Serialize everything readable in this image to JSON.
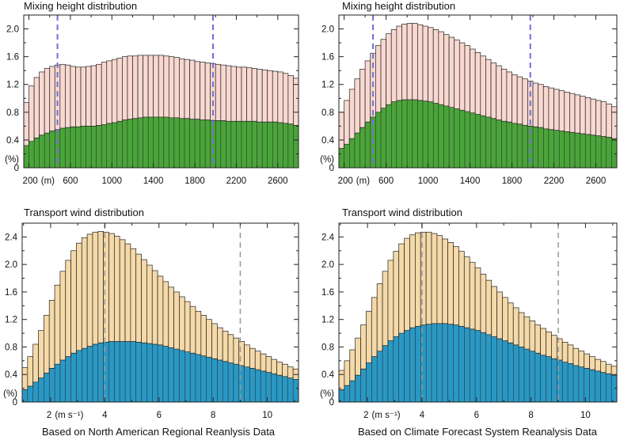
{
  "chart_data": [
    {
      "type": "bar",
      "title": "Mixing height distribution",
      "ylabel": "(%)",
      "xunit": "(m)",
      "xlim": [
        150,
        2800
      ],
      "ylim": [
        0,
        2.2
      ],
      "yticks": [
        0,
        0.4,
        0.8,
        1.2,
        1.6,
        2.0
      ],
      "xticks": [
        200,
        600,
        1000,
        1400,
        1800,
        2200,
        2600
      ],
      "bin_width": 50,
      "x": [
        175,
        225,
        275,
        325,
        375,
        425,
        475,
        525,
        575,
        625,
        675,
        725,
        775,
        825,
        875,
        925,
        975,
        1025,
        1075,
        1125,
        1175,
        1225,
        1275,
        1325,
        1375,
        1425,
        1475,
        1525,
        1575,
        1625,
        1675,
        1725,
        1775,
        1825,
        1875,
        1925,
        1975,
        2025,
        2075,
        2125,
        2175,
        2225,
        2275,
        2325,
        2375,
        2425,
        2475,
        2525,
        2575,
        2625,
        2675,
        2725,
        2775
      ],
      "colors": {
        "total": "#f8d8d0",
        "subset": "#4aa43a",
        "marker": "#6f6fd9"
      },
      "series": [
        {
          "values": [
            0.94,
            1.18,
            1.3,
            1.38,
            1.43,
            1.46,
            1.48,
            1.49,
            1.48,
            1.46,
            1.45,
            1.45,
            1.46,
            1.47,
            1.49,
            1.52,
            1.54,
            1.56,
            1.58,
            1.6,
            1.61,
            1.61,
            1.62,
            1.62,
            1.62,
            1.62,
            1.62,
            1.61,
            1.6,
            1.59,
            1.57,
            1.56,
            1.55,
            1.53,
            1.52,
            1.51,
            1.5,
            1.49,
            1.48,
            1.47,
            1.46,
            1.45,
            1.45,
            1.44,
            1.43,
            1.42,
            1.41,
            1.4,
            1.39,
            1.38,
            1.36,
            1.33,
            1.29
          ]
        },
        {
          "values": [
            0.32,
            0.38,
            0.43,
            0.47,
            0.5,
            0.53,
            0.55,
            0.57,
            0.58,
            0.59,
            0.59,
            0.6,
            0.6,
            0.6,
            0.61,
            0.62,
            0.64,
            0.65,
            0.67,
            0.69,
            0.7,
            0.71,
            0.72,
            0.73,
            0.73,
            0.73,
            0.73,
            0.73,
            0.72,
            0.72,
            0.71,
            0.71,
            0.7,
            0.7,
            0.69,
            0.69,
            0.68,
            0.68,
            0.68,
            0.67,
            0.67,
            0.67,
            0.67,
            0.67,
            0.67,
            0.66,
            0.66,
            0.66,
            0.66,
            0.65,
            0.64,
            0.63,
            0.61
          ]
        }
      ],
      "markers": [
        475,
        1975
      ]
    },
    {
      "type": "bar",
      "title": "Mixing height distribution",
      "ylabel": "(%)",
      "xunit": "(m)",
      "xlim": [
        150,
        2800
      ],
      "ylim": [
        0,
        2.2
      ],
      "yticks": [
        0,
        0.4,
        0.8,
        1.2,
        1.6,
        2.0
      ],
      "xticks": [
        200,
        600,
        1000,
        1400,
        1800,
        2200,
        2600
      ],
      "bin_width": 50,
      "x": [
        175,
        225,
        275,
        325,
        375,
        425,
        475,
        525,
        575,
        625,
        675,
        725,
        775,
        825,
        875,
        925,
        975,
        1025,
        1075,
        1125,
        1175,
        1225,
        1275,
        1325,
        1375,
        1425,
        1475,
        1525,
        1575,
        1625,
        1675,
        1725,
        1775,
        1825,
        1875,
        1925,
        1975,
        2025,
        2075,
        2125,
        2175,
        2225,
        2275,
        2325,
        2375,
        2425,
        2475,
        2525,
        2575,
        2625,
        2675,
        2725,
        2775
      ],
      "colors": {
        "total": "#f8d8d0",
        "subset": "#4aa43a",
        "marker": "#6f6fd9"
      },
      "series": [
        {
          "values": [
            0.8,
            0.97,
            1.13,
            1.28,
            1.42,
            1.54,
            1.65,
            1.76,
            1.85,
            1.93,
            1.99,
            2.04,
            2.07,
            2.08,
            2.08,
            2.06,
            2.04,
            2.02,
            1.99,
            1.96,
            1.92,
            1.88,
            1.84,
            1.8,
            1.76,
            1.71,
            1.66,
            1.61,
            1.56,
            1.51,
            1.47,
            1.42,
            1.38,
            1.34,
            1.31,
            1.28,
            1.25,
            1.22,
            1.2,
            1.17,
            1.15,
            1.13,
            1.11,
            1.09,
            1.07,
            1.05,
            1.03,
            1.01,
            0.99,
            0.97,
            0.95,
            0.92,
            0.88
          ]
        },
        {
          "values": [
            0.28,
            0.34,
            0.42,
            0.5,
            0.58,
            0.66,
            0.73,
            0.8,
            0.86,
            0.91,
            0.95,
            0.97,
            0.98,
            0.98,
            0.98,
            0.97,
            0.96,
            0.95,
            0.93,
            0.91,
            0.89,
            0.87,
            0.85,
            0.83,
            0.81,
            0.79,
            0.77,
            0.75,
            0.73,
            0.71,
            0.69,
            0.67,
            0.66,
            0.64,
            0.63,
            0.61,
            0.6,
            0.59,
            0.58,
            0.56,
            0.55,
            0.54,
            0.53,
            0.52,
            0.51,
            0.5,
            0.49,
            0.48,
            0.47,
            0.46,
            0.45,
            0.44,
            0.42
          ]
        }
      ],
      "markers": [
        475,
        1975
      ]
    },
    {
      "type": "bar",
      "title": "Transport wind distribution",
      "ylabel": "(%)",
      "xunit": "(m s⁻¹)",
      "caption": "Based on North American Regional Reanlysis Data",
      "xlim": [
        0.95,
        11.15
      ],
      "ylim": [
        0,
        2.6
      ],
      "yticks": [
        0,
        0.4,
        0.8,
        1.2,
        1.6,
        2.0,
        2.4
      ],
      "xticks": [
        2,
        4,
        6,
        8,
        10
      ],
      "bin_width": 0.2,
      "x": [
        1.05,
        1.25,
        1.45,
        1.65,
        1.85,
        2.05,
        2.25,
        2.45,
        2.65,
        2.85,
        3.05,
        3.25,
        3.45,
        3.65,
        3.85,
        4.05,
        4.25,
        4.45,
        4.65,
        4.85,
        5.05,
        5.25,
        5.45,
        5.65,
        5.85,
        6.05,
        6.25,
        6.45,
        6.65,
        6.85,
        7.05,
        7.25,
        7.45,
        7.65,
        7.85,
        8.05,
        8.25,
        8.45,
        8.65,
        8.85,
        9.05,
        9.25,
        9.45,
        9.65,
        9.85,
        10.05,
        10.25,
        10.45,
        10.65,
        10.85,
        11.05
      ],
      "colors": {
        "total": "#f5d9a8",
        "subset": "#2a98c4",
        "marker": "#999999"
      },
      "series": [
        {
          "values": [
            0.5,
            0.66,
            0.84,
            1.04,
            1.26,
            1.48,
            1.7,
            1.9,
            2.06,
            2.2,
            2.31,
            2.39,
            2.44,
            2.47,
            2.48,
            2.47,
            2.45,
            2.41,
            2.36,
            2.3,
            2.23,
            2.15,
            2.07,
            1.99,
            1.91,
            1.83,
            1.75,
            1.67,
            1.6,
            1.53,
            1.46,
            1.39,
            1.32,
            1.26,
            1.2,
            1.14,
            1.08,
            1.03,
            0.98,
            0.93,
            0.88,
            0.83,
            0.78,
            0.74,
            0.7,
            0.66,
            0.62,
            0.58,
            0.55,
            0.51,
            0.48
          ]
        },
        {
          "values": [
            0.18,
            0.23,
            0.29,
            0.35,
            0.42,
            0.49,
            0.55,
            0.61,
            0.66,
            0.71,
            0.75,
            0.78,
            0.81,
            0.84,
            0.86,
            0.87,
            0.88,
            0.88,
            0.88,
            0.88,
            0.88,
            0.87,
            0.86,
            0.85,
            0.84,
            0.83,
            0.81,
            0.79,
            0.77,
            0.75,
            0.73,
            0.71,
            0.69,
            0.67,
            0.65,
            0.63,
            0.61,
            0.59,
            0.57,
            0.55,
            0.53,
            0.51,
            0.49,
            0.47,
            0.45,
            0.43,
            0.41,
            0.39,
            0.37,
            0.35,
            0.33
          ]
        }
      ],
      "markers": [
        4.0,
        9.0
      ]
    },
    {
      "type": "bar",
      "title": "Transport wind distribution",
      "ylabel": "(%)",
      "xunit": "(m s⁻¹)",
      "caption": "Based on Climate Forecast System Reanalysis Data",
      "xlim": [
        0.95,
        11.15
      ],
      "ylim": [
        0,
        2.6
      ],
      "yticks": [
        0,
        0.4,
        0.8,
        1.2,
        1.6,
        2.0,
        2.4
      ],
      "xticks": [
        2,
        4,
        6,
        8,
        10
      ],
      "bin_width": 0.2,
      "x": [
        1.05,
        1.25,
        1.45,
        1.65,
        1.85,
        2.05,
        2.25,
        2.45,
        2.65,
        2.85,
        3.05,
        3.25,
        3.45,
        3.65,
        3.85,
        4.05,
        4.25,
        4.45,
        4.65,
        4.85,
        5.05,
        5.25,
        5.45,
        5.65,
        5.85,
        6.05,
        6.25,
        6.45,
        6.65,
        6.85,
        7.05,
        7.25,
        7.45,
        7.65,
        7.85,
        8.05,
        8.25,
        8.45,
        8.65,
        8.85,
        9.05,
        9.25,
        9.45,
        9.65,
        9.85,
        10.05,
        10.25,
        10.45,
        10.65,
        10.85,
        11.05
      ],
      "colors": {
        "total": "#f5d9a8",
        "subset": "#2a98c4",
        "marker": "#999999"
      },
      "series": [
        {
          "values": [
            0.46,
            0.6,
            0.76,
            0.93,
            1.12,
            1.32,
            1.52,
            1.72,
            1.9,
            2.06,
            2.19,
            2.3,
            2.38,
            2.43,
            2.46,
            2.47,
            2.47,
            2.45,
            2.42,
            2.37,
            2.32,
            2.26,
            2.19,
            2.11,
            2.03,
            1.95,
            1.86,
            1.77,
            1.68,
            1.6,
            1.52,
            1.44,
            1.37,
            1.3,
            1.24,
            1.18,
            1.12,
            1.07,
            1.02,
            0.97,
            0.92,
            0.87,
            0.83,
            0.78,
            0.74,
            0.7,
            0.66,
            0.62,
            0.59,
            0.55,
            0.52
          ]
        },
        {
          "values": [
            0.18,
            0.24,
            0.31,
            0.39,
            0.48,
            0.57,
            0.66,
            0.74,
            0.82,
            0.89,
            0.95,
            1.0,
            1.04,
            1.08,
            1.1,
            1.12,
            1.13,
            1.14,
            1.14,
            1.14,
            1.13,
            1.12,
            1.1,
            1.08,
            1.06,
            1.04,
            1.01,
            0.98,
            0.95,
            0.92,
            0.89,
            0.86,
            0.83,
            0.8,
            0.77,
            0.74,
            0.71,
            0.68,
            0.66,
            0.63,
            0.61,
            0.58,
            0.56,
            0.53,
            0.51,
            0.49,
            0.47,
            0.45,
            0.43,
            0.41,
            0.39
          ]
        }
      ],
      "markers": [
        4.0,
        9.0
      ]
    }
  ]
}
